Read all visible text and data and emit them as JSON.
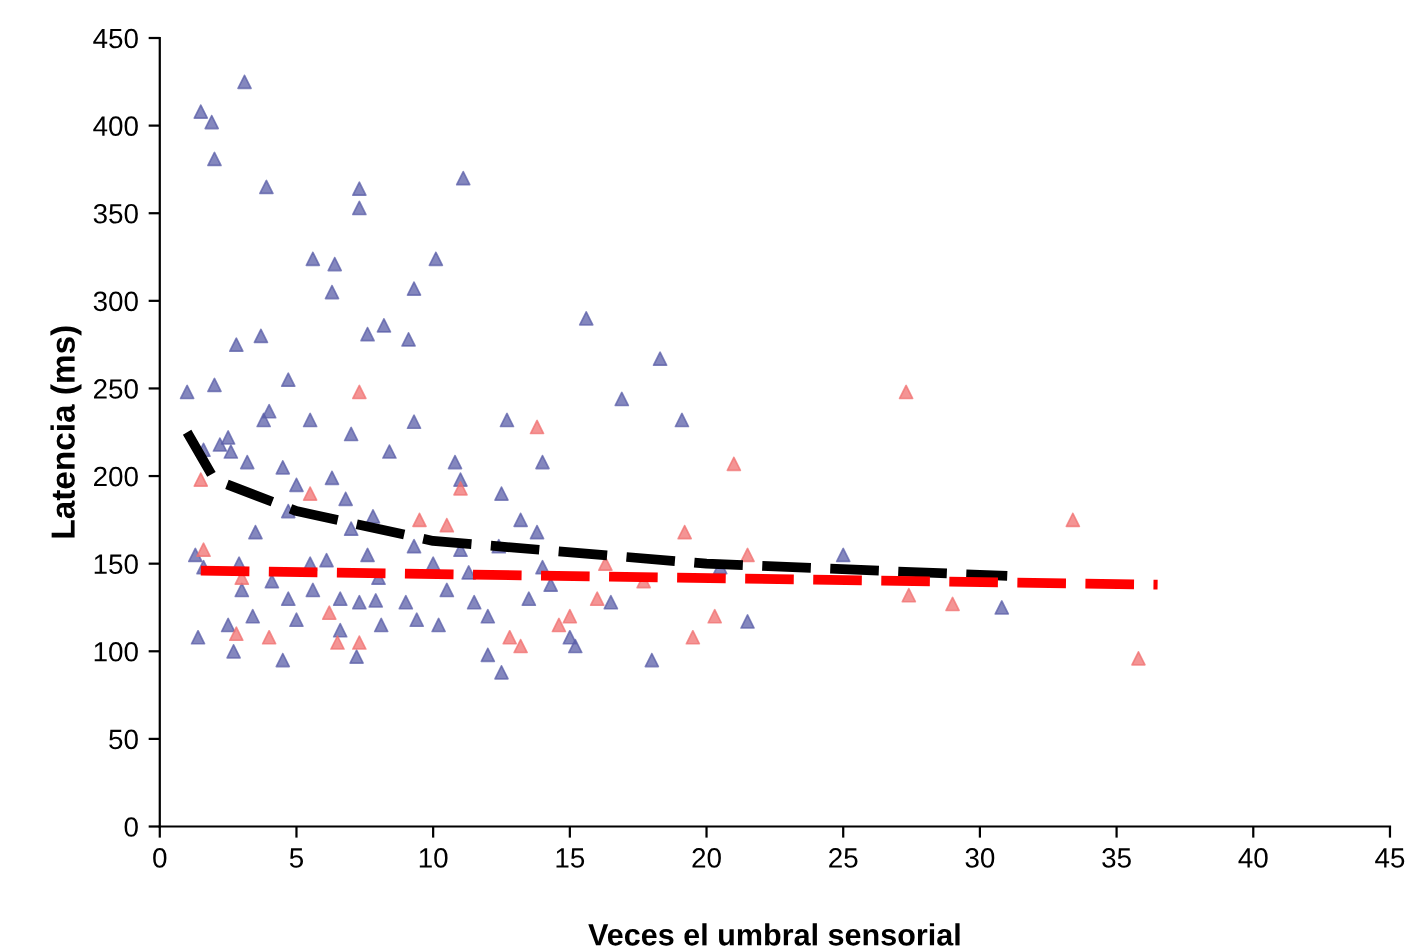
{
  "chart_data": {
    "type": "scatter",
    "xlabel": "Veces el umbral sensorial",
    "ylabel": "Latencia (ms)",
    "xlim": [
      0,
      45
    ],
    "ylim": [
      0,
      450
    ],
    "xticks": [
      0,
      5,
      10,
      15,
      20,
      25,
      30,
      35,
      40,
      45
    ],
    "yticks": [
      0,
      50,
      100,
      150,
      200,
      250,
      300,
      350,
      400,
      450
    ],
    "marker": "triangle",
    "series": [
      {
        "color": "#5b5fa8",
        "x": [
          1.5,
          1.9,
          2.0,
          3.1,
          3.9,
          7.3,
          7.3,
          11.1,
          5.6,
          6.4,
          10.1,
          6.3,
          9.3,
          2.8,
          3.7,
          7.6,
          8.2,
          9.1,
          15.6,
          16.9,
          18.3,
          19.1,
          1.0,
          2.0,
          4.7,
          4.0,
          3.8,
          5.5,
          7.0,
          8.4,
          9.3,
          10.8,
          11.0,
          14.0,
          12.7,
          1.6,
          2.2,
          2.5,
          2.6,
          3.2,
          4.5,
          5.0,
          6.3,
          6.8,
          7.8,
          7.0,
          4.7,
          3.5,
          12.5,
          13.2,
          13.8,
          11.0,
          1.3,
          1.6,
          2.9,
          4.1,
          5.5,
          6.1,
          7.6,
          8.0,
          10.0,
          9.3,
          11.3,
          12.4,
          14.0,
          3.0,
          4.7,
          5.6,
          6.6,
          7.3,
          7.9,
          9.0,
          10.5,
          11.5,
          13.5,
          14.3,
          16.5,
          12.0,
          10.2,
          9.4,
          8.1,
          6.6,
          5.0,
          3.4,
          2.5,
          1.4,
          2.7,
          4.5,
          7.2,
          12.0,
          12.5,
          15.0,
          15.2,
          18.0,
          20.5,
          21.5,
          25.0,
          30.8
        ],
        "values": [
          408,
          402,
          381,
          425,
          365,
          364,
          353,
          370,
          324,
          321,
          324,
          305,
          307,
          275,
          280,
          281,
          286,
          278,
          290,
          244,
          267,
          232,
          248,
          252,
          255,
          237,
          232,
          232,
          224,
          214,
          231,
          208,
          198,
          208,
          232,
          215,
          218,
          222,
          214,
          208,
          205,
          195,
          199,
          187,
          177,
          170,
          180,
          168,
          190,
          175,
          168,
          158,
          155,
          148,
          150,
          140,
          150,
          152,
          155,
          142,
          150,
          160,
          145,
          160,
          148,
          135,
          130,
          135,
          130,
          128,
          129,
          128,
          135,
          128,
          130,
          138,
          128,
          120,
          115,
          118,
          115,
          112,
          118,
          120,
          115,
          108,
          100,
          95,
          97,
          98,
          88,
          108,
          103,
          95,
          148,
          117,
          155,
          125
        ]
      },
      {
        "color": "#f07070",
        "x": [
          7.3,
          1.5,
          11.0,
          13.8,
          21.0,
          19.2,
          27.3,
          33.4,
          35.8,
          21.5,
          1.6,
          3.0,
          4.0,
          6.2,
          5.5,
          6.5,
          7.3,
          9.5,
          10.5,
          12.8,
          13.2,
          15.0,
          14.6,
          16.0,
          17.7,
          16.3,
          19.5,
          20.3,
          27.4,
          29.0,
          2.8
        ],
        "values": [
          248,
          198,
          193,
          228,
          207,
          168,
          248,
          175,
          96,
          155,
          158,
          142,
          108,
          122,
          190,
          105,
          105,
          175,
          172,
          108,
          103,
          120,
          115,
          130,
          140,
          150,
          108,
          120,
          132,
          127,
          110
        ]
      },
      {
        "type": "line",
        "line_style": "dashed",
        "color": "#000000",
        "marker": "none",
        "x": [
          1,
          2,
          5,
          10,
          20,
          31
        ],
        "values": [
          225,
          198,
          180,
          163,
          150,
          143
        ]
      },
      {
        "type": "line",
        "line_style": "dashed",
        "color": "#ff0000",
        "marker": "none",
        "x": [
          1.5,
          36.5
        ],
        "values": [
          146,
          138
        ]
      }
    ]
  }
}
